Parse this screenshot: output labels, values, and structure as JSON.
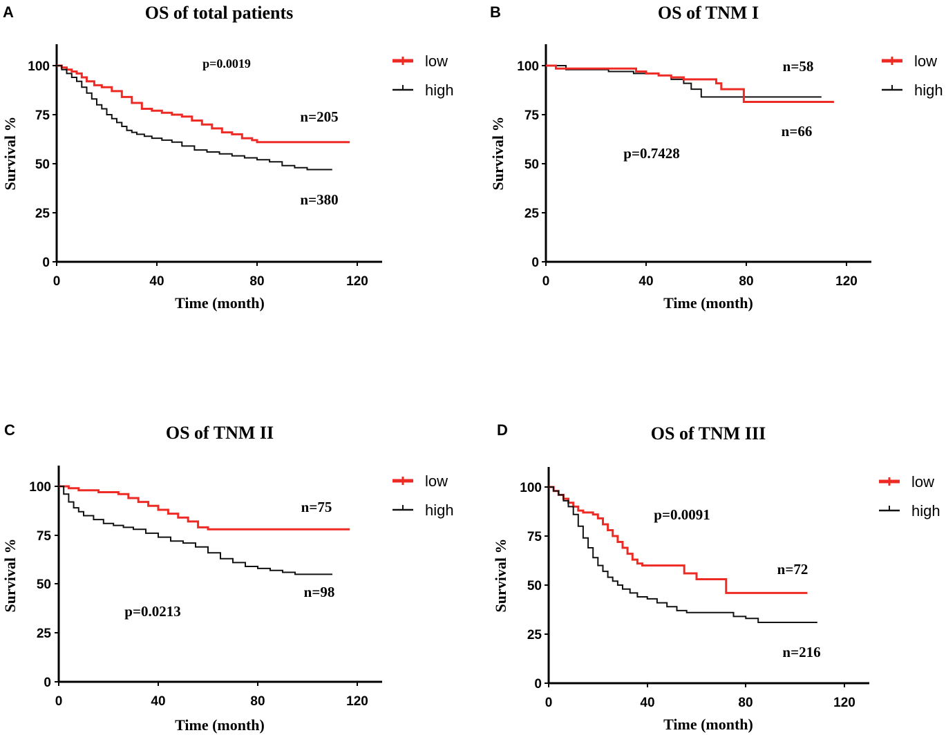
{
  "chart_data": [
    {
      "panel": "A",
      "type": "line",
      "title": "OS of total patients",
      "xlabel": "Time (month)",
      "ylabel": "Survival %",
      "xlim": [
        0,
        130
      ],
      "ylim": [
        0,
        110
      ],
      "xticks": [
        0,
        40,
        80,
        120
      ],
      "yticks": [
        0,
        25,
        50,
        75,
        100
      ],
      "legend": "top-right",
      "series": [
        {
          "name": "low",
          "color": "#ee2a24",
          "x": [
            0,
            2,
            4,
            6,
            8,
            10,
            12,
            15,
            18,
            22,
            26,
            30,
            34,
            38,
            42,
            46,
            50,
            54,
            58,
            62,
            66,
            70,
            74,
            78,
            80,
            85,
            90,
            95,
            100,
            105,
            110,
            117
          ],
          "y": [
            100,
            99,
            98,
            97,
            96,
            94,
            92,
            90,
            89,
            87,
            84,
            81,
            78,
            77,
            76,
            75,
            74,
            72,
            70,
            68,
            66,
            65,
            63,
            62,
            61,
            61,
            61,
            61,
            61,
            61,
            61,
            61
          ],
          "count_label": "n=205"
        },
        {
          "name": "high",
          "color": "#111111",
          "x": [
            0,
            2,
            4,
            6,
            8,
            10,
            12,
            14,
            16,
            18,
            20,
            22,
            24,
            26,
            28,
            30,
            32,
            35,
            38,
            42,
            46,
            50,
            55,
            60,
            65,
            70,
            75,
            80,
            85,
            90,
            95,
            100,
            105,
            110
          ],
          "y": [
            100,
            98,
            96,
            94,
            92,
            89,
            86,
            83,
            80,
            78,
            75,
            73,
            71,
            69,
            67,
            66,
            65,
            64,
            63,
            62,
            61,
            59,
            57,
            56,
            55,
            54,
            53,
            52,
            51,
            49,
            48,
            47,
            47,
            47
          ],
          "count_label": "n=380"
        }
      ],
      "annotations": {
        "p_value": "p=0.0019"
      }
    },
    {
      "panel": "B",
      "type": "line",
      "title": "OS of TNM I",
      "xlabel": "Time (month)",
      "ylabel": "Survival %",
      "xlim": [
        0,
        130
      ],
      "ylim": [
        0,
        110
      ],
      "xticks": [
        0,
        40,
        80,
        120
      ],
      "yticks": [
        0,
        25,
        50,
        75,
        100
      ],
      "legend": "top-right",
      "series": [
        {
          "name": "low",
          "color": "#ee2a24",
          "x": [
            0,
            4,
            10,
            20,
            30,
            36,
            40,
            45,
            50,
            55,
            60,
            65,
            68,
            70,
            75,
            79,
            85,
            90,
            100,
            110,
            115
          ],
          "y": [
            100,
            98.5,
            98.5,
            98.5,
            98.5,
            97,
            96,
            95,
            94,
            93,
            93,
            93,
            91,
            88,
            88,
            81.5,
            81.5,
            81.5,
            81.5,
            81.5,
            81.5
          ],
          "count_label": "n=66"
        },
        {
          "name": "high",
          "color": "#111111",
          "x": [
            0,
            8,
            15,
            20,
            25,
            30,
            35,
            40,
            45,
            50,
            55,
            58,
            62,
            66,
            70,
            75,
            80,
            85,
            90,
            95,
            100,
            105,
            110
          ],
          "y": [
            100,
            98,
            98,
            98,
            97,
            97,
            96,
            96,
            95,
            93,
            91,
            88,
            84,
            84,
            84,
            84,
            84,
            84,
            84,
            84,
            84,
            84,
            84
          ],
          "count_label": "n=58"
        }
      ],
      "annotations": {
        "p_value": "p=0.7428"
      }
    },
    {
      "panel": "C",
      "type": "line",
      "title": "OS of TNM II",
      "xlabel": "Time (month)",
      "ylabel": "Survival %",
      "xlim": [
        0,
        130
      ],
      "ylim": [
        0,
        110
      ],
      "xticks": [
        0,
        40,
        80,
        120
      ],
      "yticks": [
        0,
        25,
        50,
        75,
        100
      ],
      "legend": "top-right",
      "series": [
        {
          "name": "low",
          "color": "#ee2a24",
          "x": [
            0,
            4,
            8,
            12,
            16,
            20,
            24,
            28,
            32,
            36,
            40,
            44,
            48,
            52,
            56,
            60,
            70,
            80,
            90,
            100,
            110,
            117
          ],
          "y": [
            100,
            99,
            98,
            98,
            97,
            97,
            96,
            94,
            92,
            90,
            88,
            86,
            84,
            82,
            79,
            78,
            78,
            78,
            78,
            78,
            78,
            78
          ],
          "count_label": "n=75"
        },
        {
          "name": "high",
          "color": "#111111",
          "x": [
            0,
            2,
            4,
            6,
            8,
            10,
            14,
            18,
            22,
            26,
            30,
            35,
            40,
            45,
            50,
            55,
            60,
            65,
            70,
            75,
            80,
            85,
            90,
            95,
            100,
            105,
            110
          ],
          "y": [
            100,
            96,
            92,
            89,
            87,
            85,
            83,
            81,
            80,
            79,
            78,
            76,
            74,
            72,
            71,
            69,
            66,
            63,
            61,
            59,
            58,
            57,
            56,
            55,
            55,
            55,
            55
          ],
          "count_label": "n=98"
        }
      ],
      "annotations": {
        "p_value": "p=0.0213"
      }
    },
    {
      "panel": "D",
      "type": "line",
      "title": "OS of TNM III",
      "xlabel": "Time (month)",
      "ylabel": "Survival %",
      "xlim": [
        0,
        130
      ],
      "ylim": [
        0,
        110
      ],
      "xticks": [
        0,
        40,
        80,
        120
      ],
      "yticks": [
        0,
        25,
        50,
        75,
        100
      ],
      "legend": "top-right",
      "series": [
        {
          "name": "low",
          "color": "#ee2a24",
          "x": [
            0,
            2,
            4,
            6,
            8,
            10,
            12,
            14,
            16,
            18,
            20,
            22,
            24,
            26,
            28,
            30,
            32,
            34,
            36,
            38,
            40,
            45,
            50,
            55,
            60,
            65,
            70,
            72,
            80,
            90,
            100,
            105
          ],
          "y": [
            100,
            98,
            96,
            94,
            92,
            90,
            88,
            87,
            87,
            86,
            84,
            81,
            78,
            75,
            72,
            69,
            66,
            63,
            61,
            60,
            60,
            60,
            60,
            56,
            53,
            53,
            53,
            46,
            46,
            46,
            46,
            46
          ],
          "count_label": "n=72"
        },
        {
          "name": "high",
          "color": "#111111",
          "x": [
            0,
            2,
            4,
            6,
            8,
            10,
            12,
            14,
            16,
            18,
            20,
            22,
            24,
            26,
            28,
            30,
            33,
            36,
            40,
            44,
            48,
            52,
            56,
            60,
            65,
            70,
            75,
            80,
            85,
            90,
            95,
            100,
            109
          ],
          "y": [
            100,
            98,
            96,
            93,
            90,
            86,
            80,
            74,
            69,
            64,
            60,
            57,
            54,
            52,
            50,
            48,
            46,
            44,
            43,
            41,
            39,
            37,
            36,
            36,
            36,
            36,
            34,
            33,
            31,
            31,
            31,
            31,
            31
          ],
          "count_label": "n=216"
        }
      ],
      "annotations": {
        "p_value": "p=0.0091"
      }
    }
  ]
}
